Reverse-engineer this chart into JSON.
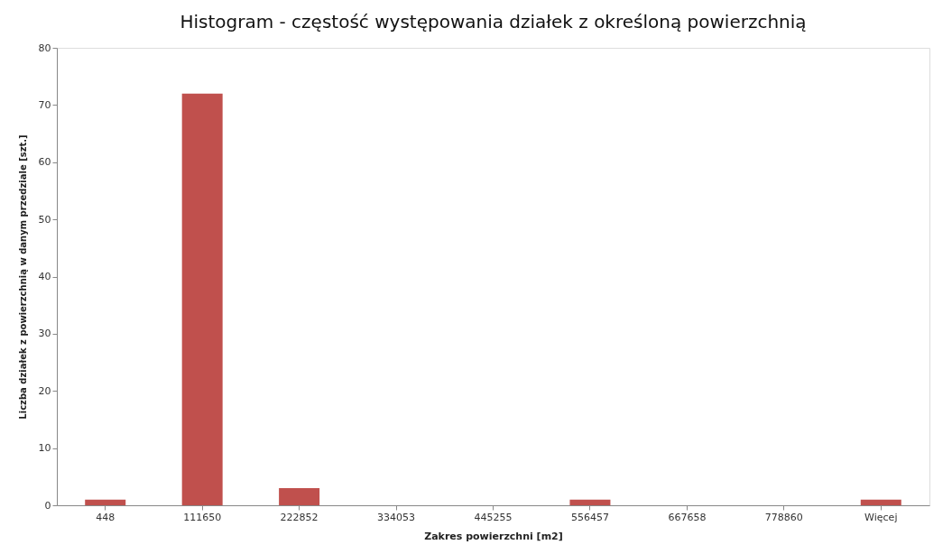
{
  "chart_data": {
    "type": "bar",
    "title": "Histogram - częstość występowania działek z określoną powierzchnią",
    "xlabel": "Zakres powierzchni [m2]",
    "ylabel": "Liczba działek z powierzchnią w danym przedziale [szt.]",
    "categories": [
      "448",
      "111650",
      "222852",
      "334053",
      "445255",
      "556457",
      "667658",
      "778860",
      "Więcej"
    ],
    "values": [
      1,
      72,
      3,
      0,
      0,
      1,
      0,
      0,
      1
    ],
    "color": "#c0504d",
    "ylim": [
      0,
      80
    ],
    "yticks": [
      0,
      10,
      20,
      30,
      40,
      50,
      60,
      70,
      80
    ],
    "grid": false
  }
}
